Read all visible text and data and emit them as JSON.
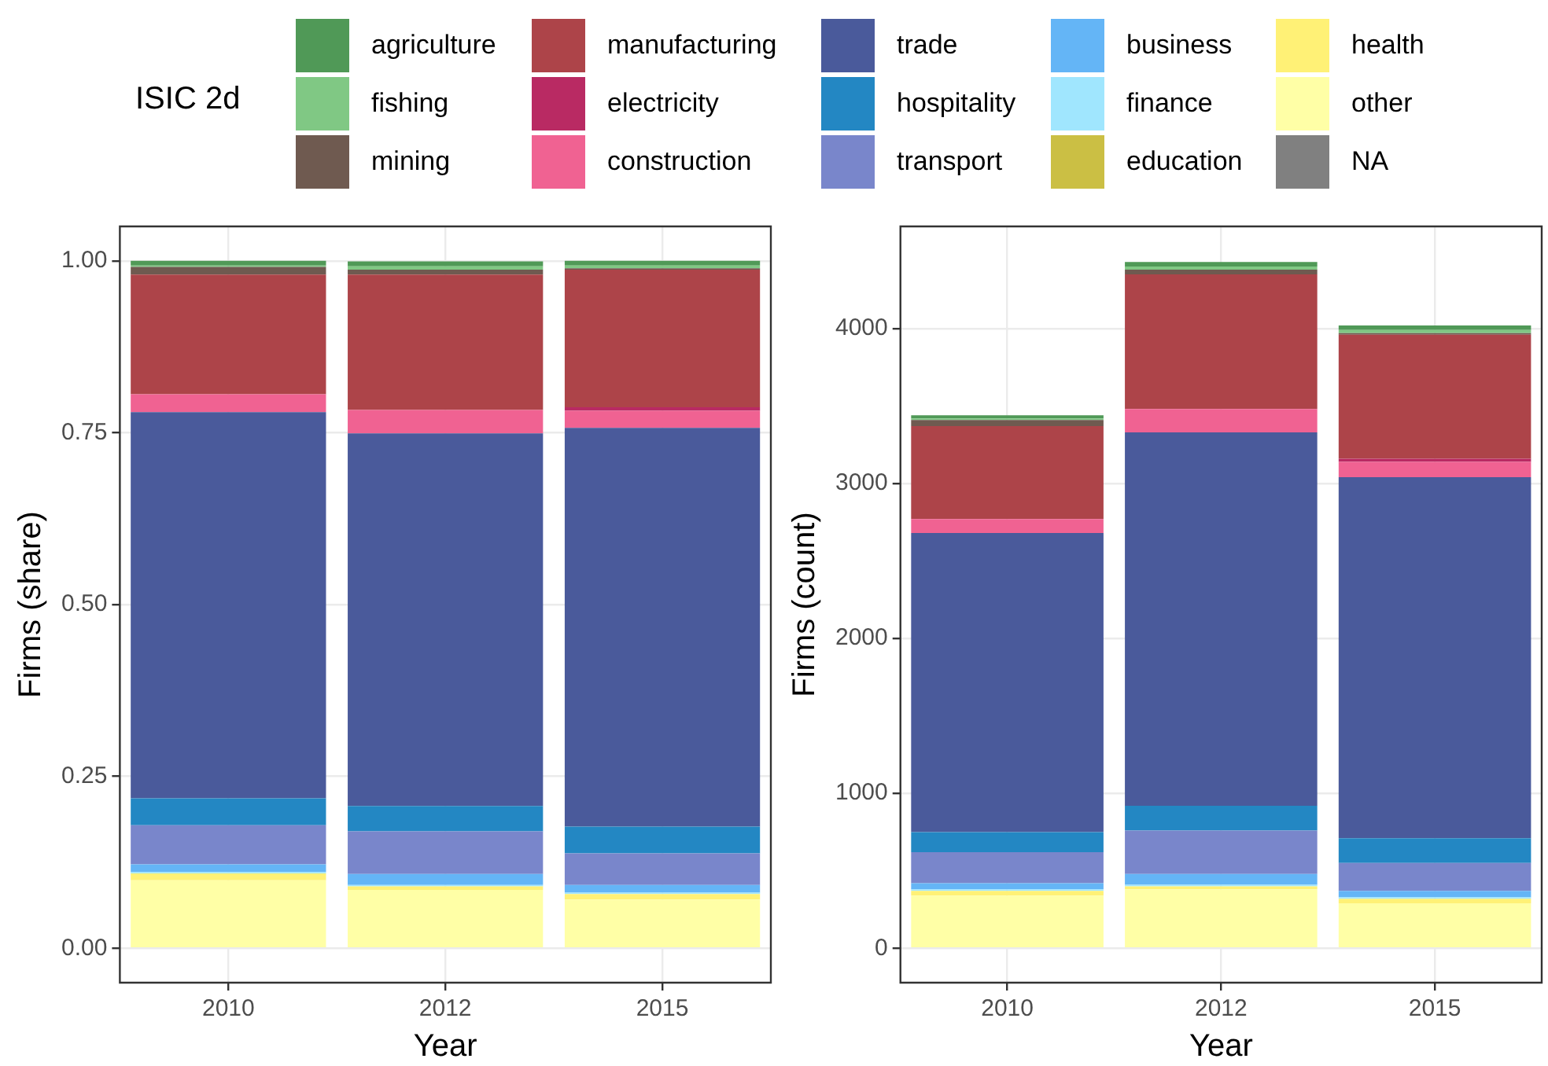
{
  "chart_data": [
    {
      "type": "bar",
      "stacked": true,
      "legend": "top",
      "legend_title": "ISIC 2d",
      "grid": true,
      "xlabel": "Year",
      "ylabel": "Firms (share)",
      "categories": [
        "2010",
        "2012",
        "2015"
      ],
      "ylim": [
        -0.05,
        1.05
      ],
      "yticks": [
        {
          "value": 0,
          "label": "0.00"
        },
        {
          "value": 0.25,
          "label": "0.25"
        },
        {
          "value": 0.5,
          "label": "0.50"
        },
        {
          "value": 0.75,
          "label": "0.75"
        },
        {
          "value": 1,
          "label": "1.00"
        }
      ],
      "series": [
        {
          "name": "NA",
          "color": "#808080",
          "values": [
            0,
            0,
            0
          ]
        },
        {
          "name": "other",
          "color": "#ffffa6",
          "values": [
            0.099,
            0.085,
            0.071
          ]
        },
        {
          "name": "health",
          "color": "#fff176",
          "values": [
            0.01,
            0.005,
            0.008
          ]
        },
        {
          "name": "education",
          "color": "#cbbf44",
          "values": [
            0,
            0,
            0
          ]
        },
        {
          "name": "finance",
          "color": "#a0e6fe",
          "values": [
            0.002,
            0.002,
            0.002
          ]
        },
        {
          "name": "business",
          "color": "#64b5f6",
          "values": [
            0.011,
            0.016,
            0.011
          ]
        },
        {
          "name": "transport",
          "color": "#7986cb",
          "values": [
            0.057,
            0.062,
            0.046
          ]
        },
        {
          "name": "hospitality",
          "color": "#2387c3",
          "values": [
            0.039,
            0.037,
            0.039
          ]
        },
        {
          "name": "trade",
          "color": "#4a5a9b",
          "values": [
            0.562,
            0.542,
            0.58
          ]
        },
        {
          "name": "construction",
          "color": "#f06292",
          "values": [
            0.026,
            0.034,
            0.025
          ]
        },
        {
          "name": "electricity",
          "color": "#b92a63",
          "values": [
            0,
            0,
            0.005
          ]
        },
        {
          "name": "manufacturing",
          "color": "#ad4449",
          "values": [
            0.174,
            0.197,
            0.2
          ]
        },
        {
          "name": "mining",
          "color": "#6f5a50",
          "values": [
            0.011,
            0.007,
            0.002
          ]
        },
        {
          "name": "fishing",
          "color": "#80c884",
          "values": [
            0.002,
            0.005,
            0.004
          ]
        },
        {
          "name": "agriculture",
          "color": "#509957",
          "values": [
            0.007,
            0.007,
            0.007
          ]
        }
      ]
    },
    {
      "type": "bar",
      "stacked": true,
      "grid": true,
      "xlabel": "Year",
      "ylabel": "Firms (count)",
      "categories": [
        "2010",
        "2012",
        "2015"
      ],
      "ylim": [
        -222,
        4659
      ],
      "yticks": [
        0,
        1000,
        2000,
        3000,
        4000
      ],
      "series": [
        {
          "color": "#808080",
          "values": [
            0,
            0,
            0
          ]
        },
        {
          "color": "#ffffa6",
          "values": [
            340,
            380,
            290
          ]
        },
        {
          "color": "#fff176",
          "values": [
            30,
            20,
            30
          ]
        },
        {
          "color": "#cbbf44",
          "values": [
            0,
            0,
            0
          ]
        },
        {
          "color": "#a0e6fe",
          "values": [
            10,
            10,
            10
          ]
        },
        {
          "color": "#64b5f6",
          "values": [
            40,
            70,
            40
          ]
        },
        {
          "color": "#7986cb",
          "values": [
            200,
            280,
            180
          ]
        },
        {
          "color": "#2387c3",
          "values": [
            130,
            160,
            160
          ]
        },
        {
          "color": "#4a5a9b",
          "values": [
            1930,
            2410,
            2330
          ]
        },
        {
          "color": "#f06292",
          "values": [
            90,
            150,
            100
          ]
        },
        {
          "color": "#b92a63",
          "values": [
            0,
            0,
            20
          ]
        },
        {
          "color": "#ad4449",
          "values": [
            600,
            870,
            800
          ]
        },
        {
          "color": "#6f5a50",
          "values": [
            40,
            30,
            10
          ]
        },
        {
          "color": "#80c884",
          "values": [
            10,
            20,
            20
          ]
        },
        {
          "color": "#509957",
          "values": [
            20,
            30,
            30
          ]
        }
      ]
    }
  ]
}
